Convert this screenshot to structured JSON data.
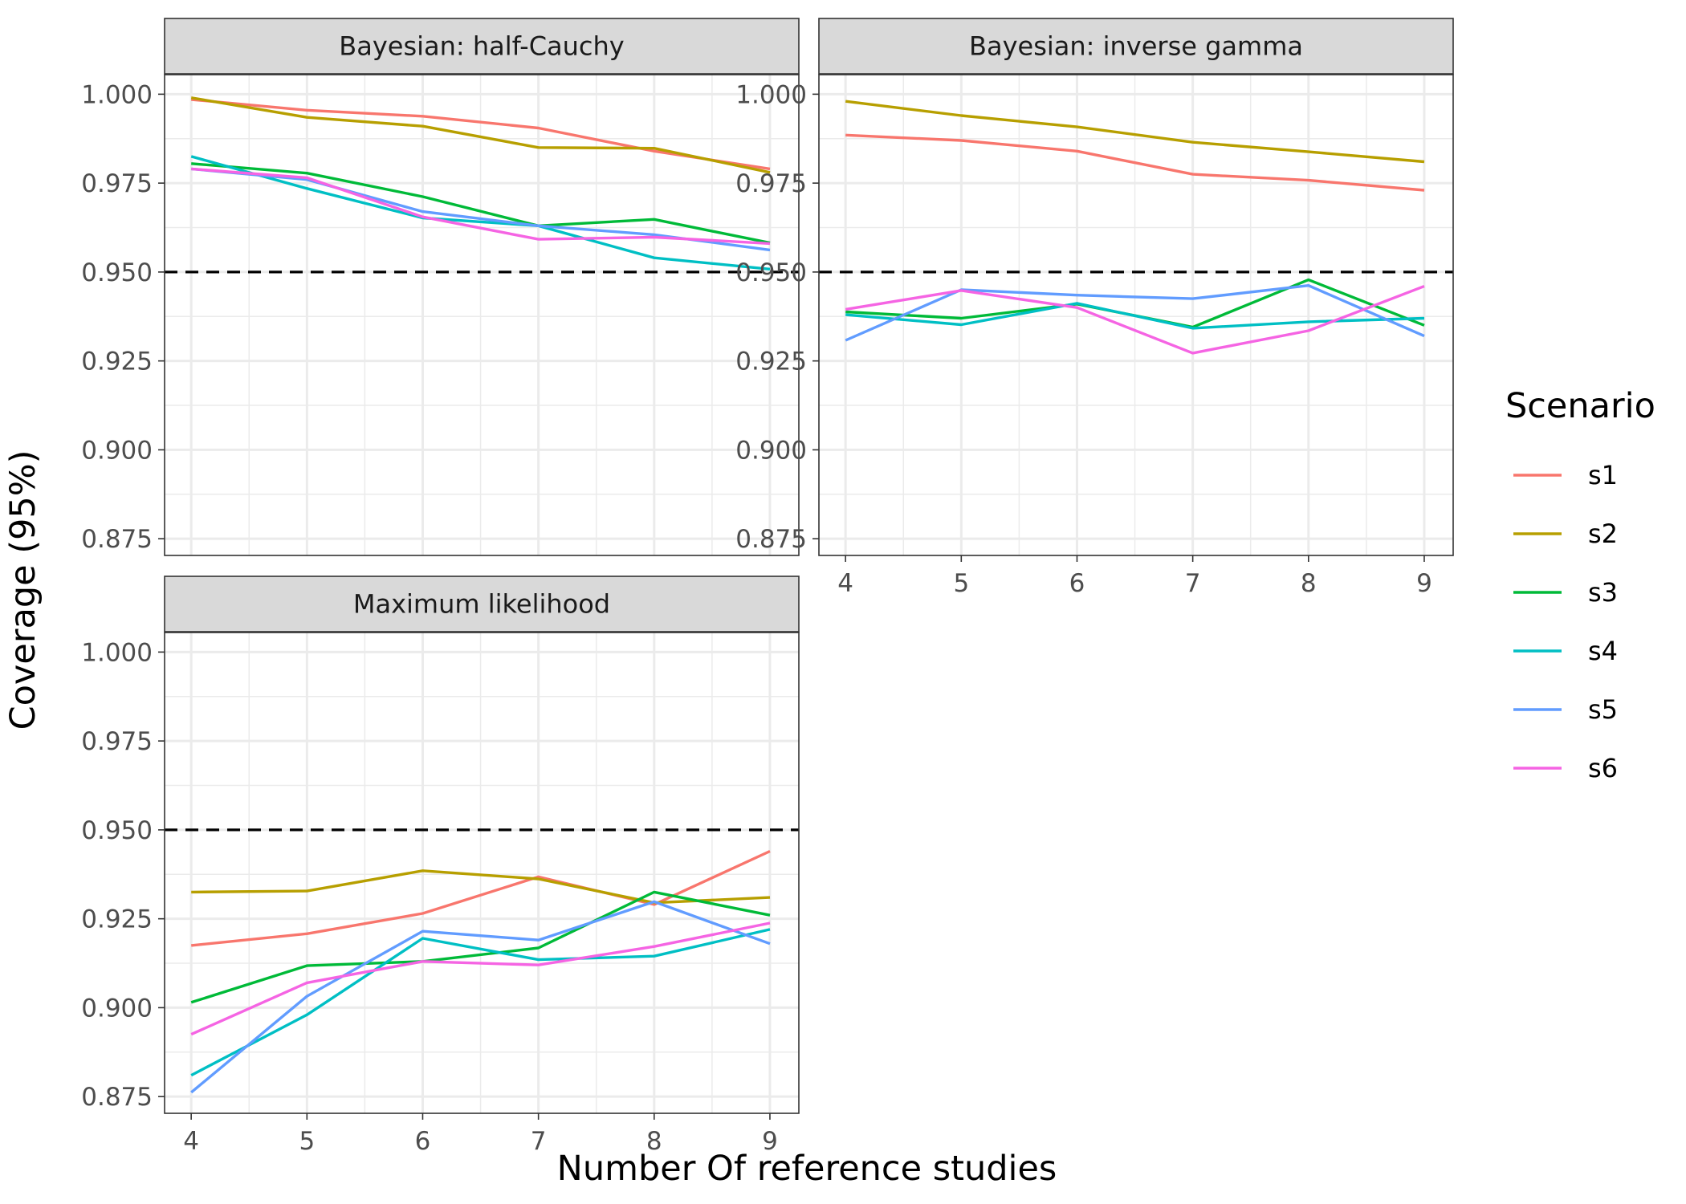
{
  "chart_data": {
    "type": "line",
    "xlabel": "Number Of reference studies",
    "ylabel": "Coverage (95%)",
    "x": [
      4,
      5,
      6,
      7,
      8,
      9
    ],
    "xlim": [
      3.77,
      9.25
    ],
    "ylim": [
      0.8703,
      1.0055
    ],
    "y_ticks": [
      0.875,
      0.9,
      0.925,
      0.95,
      0.975,
      1.0
    ],
    "y_tick_labels": [
      "0.875",
      "0.900",
      "0.925",
      "0.950",
      "0.975",
      "1.000"
    ],
    "x_tick_labels": [
      "4",
      "5",
      "6",
      "7",
      "8",
      "9"
    ],
    "reference_line": 0.95,
    "grid": true,
    "legend": {
      "title": "Scenario",
      "position": "right",
      "entries": [
        "s1",
        "s2",
        "s3",
        "s4",
        "s5",
        "s6"
      ]
    },
    "colors": {
      "s1": "#F8766D",
      "s2": "#B79F00",
      "s3": "#00BA38",
      "s4": "#00BFC4",
      "s5": "#619CFF",
      "s6": "#F564E3"
    },
    "panels": [
      {
        "title": "Bayesian: half-Cauchy",
        "series": [
          {
            "name": "s1",
            "values": [
              0.9985,
              0.9955,
              0.9938,
              0.9905,
              0.984,
              0.979
            ]
          },
          {
            "name": "s2",
            "values": [
              0.999,
              0.9935,
              0.991,
              0.985,
              0.9848,
              0.978
            ]
          },
          {
            "name": "s3",
            "values": [
              0.9805,
              0.9778,
              0.9712,
              0.963,
              0.9648,
              0.9582
            ]
          },
          {
            "name": "s4",
            "values": [
              0.9825,
              0.9735,
              0.9652,
              0.963,
              0.954,
              0.9508
            ]
          },
          {
            "name": "s5",
            "values": [
              0.979,
              0.976,
              0.967,
              0.963,
              0.9605,
              0.9562
            ]
          },
          {
            "name": "s6",
            "values": [
              0.979,
              0.9765,
              0.9655,
              0.9592,
              0.9598,
              0.958
            ]
          }
        ]
      },
      {
        "title": "Bayesian: inverse gamma",
        "series": [
          {
            "name": "s1",
            "values": [
              0.9885,
              0.987,
              0.984,
              0.9775,
              0.9758,
              0.973
            ]
          },
          {
            "name": "s2",
            "values": [
              0.998,
              0.994,
              0.9908,
              0.9865,
              0.9838,
              0.981
            ]
          },
          {
            "name": "s3",
            "values": [
              0.9388,
              0.937,
              0.941,
              0.9345,
              0.9478,
              0.935
            ]
          },
          {
            "name": "s4",
            "values": [
              0.938,
              0.9352,
              0.9412,
              0.9342,
              0.936,
              0.937
            ]
          },
          {
            "name": "s5",
            "values": [
              0.9308,
              0.945,
              0.9435,
              0.9425,
              0.9462,
              0.932
            ]
          },
          {
            "name": "s6",
            "values": [
              0.9395,
              0.9448,
              0.94,
              0.9272,
              0.9335,
              0.946
            ]
          }
        ]
      },
      {
        "title": "Maximum likelihood",
        "series": [
          {
            "name": "s1",
            "values": [
              0.9175,
              0.9208,
              0.9265,
              0.9368,
              0.929,
              0.944
            ]
          },
          {
            "name": "s2",
            "values": [
              0.9325,
              0.9328,
              0.9385,
              0.9362,
              0.9295,
              0.931
            ]
          },
          {
            "name": "s3",
            "values": [
              0.9015,
              0.9118,
              0.913,
              0.9168,
              0.9325,
              0.926
            ]
          },
          {
            "name": "s4",
            "values": [
              0.881,
              0.898,
              0.9195,
              0.9135,
              0.9145,
              0.922
            ]
          },
          {
            "name": "s5",
            "values": [
              0.8762,
              0.9032,
              0.9215,
              0.919,
              0.9298,
              0.918
            ]
          },
          {
            "name": "s6",
            "values": [
              0.8925,
              0.907,
              0.913,
              0.912,
              0.9172,
              0.9238
            ]
          }
        ]
      }
    ]
  }
}
